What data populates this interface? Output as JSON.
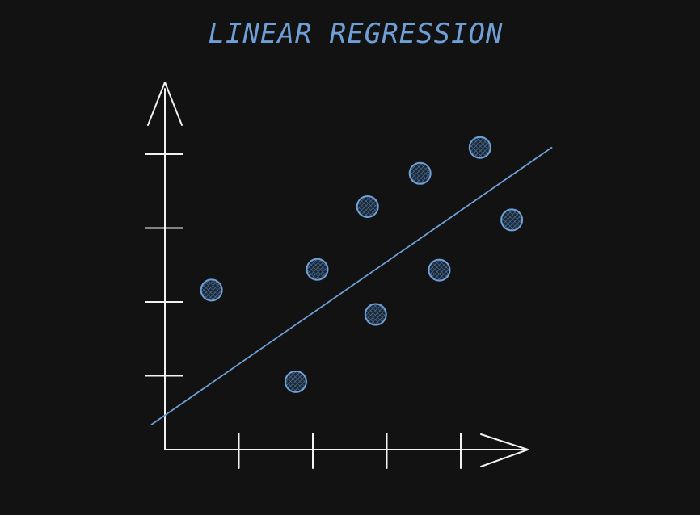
{
  "chart_data": {
    "type": "scatter",
    "title": "LINEAR REGRESSION",
    "xlabel": "",
    "ylabel": "",
    "grid": false,
    "xlim": [
      0,
      5
    ],
    "ylim": [
      0,
      5
    ],
    "x_ticks": [
      1,
      2,
      3,
      4
    ],
    "y_ticks": [
      1,
      2,
      3,
      4
    ],
    "points": [
      {
        "x": 0.63,
        "y": 2.16
      },
      {
        "x": 1.77,
        "y": 0.92
      },
      {
        "x": 2.06,
        "y": 2.44
      },
      {
        "x": 2.74,
        "y": 3.29
      },
      {
        "x": 2.85,
        "y": 1.83
      },
      {
        "x": 3.45,
        "y": 3.74
      },
      {
        "x": 3.71,
        "y": 2.43
      },
      {
        "x": 4.26,
        "y": 4.09
      },
      {
        "x": 4.69,
        "y": 3.11
      }
    ],
    "regression_line": {
      "x": [
        -0.18,
        5.23
      ],
      "y": [
        0.34,
        4.09
      ]
    },
    "colors": {
      "background": "#121212",
      "axes": "#f2f2f2",
      "accent": "#6e9fd6"
    }
  }
}
